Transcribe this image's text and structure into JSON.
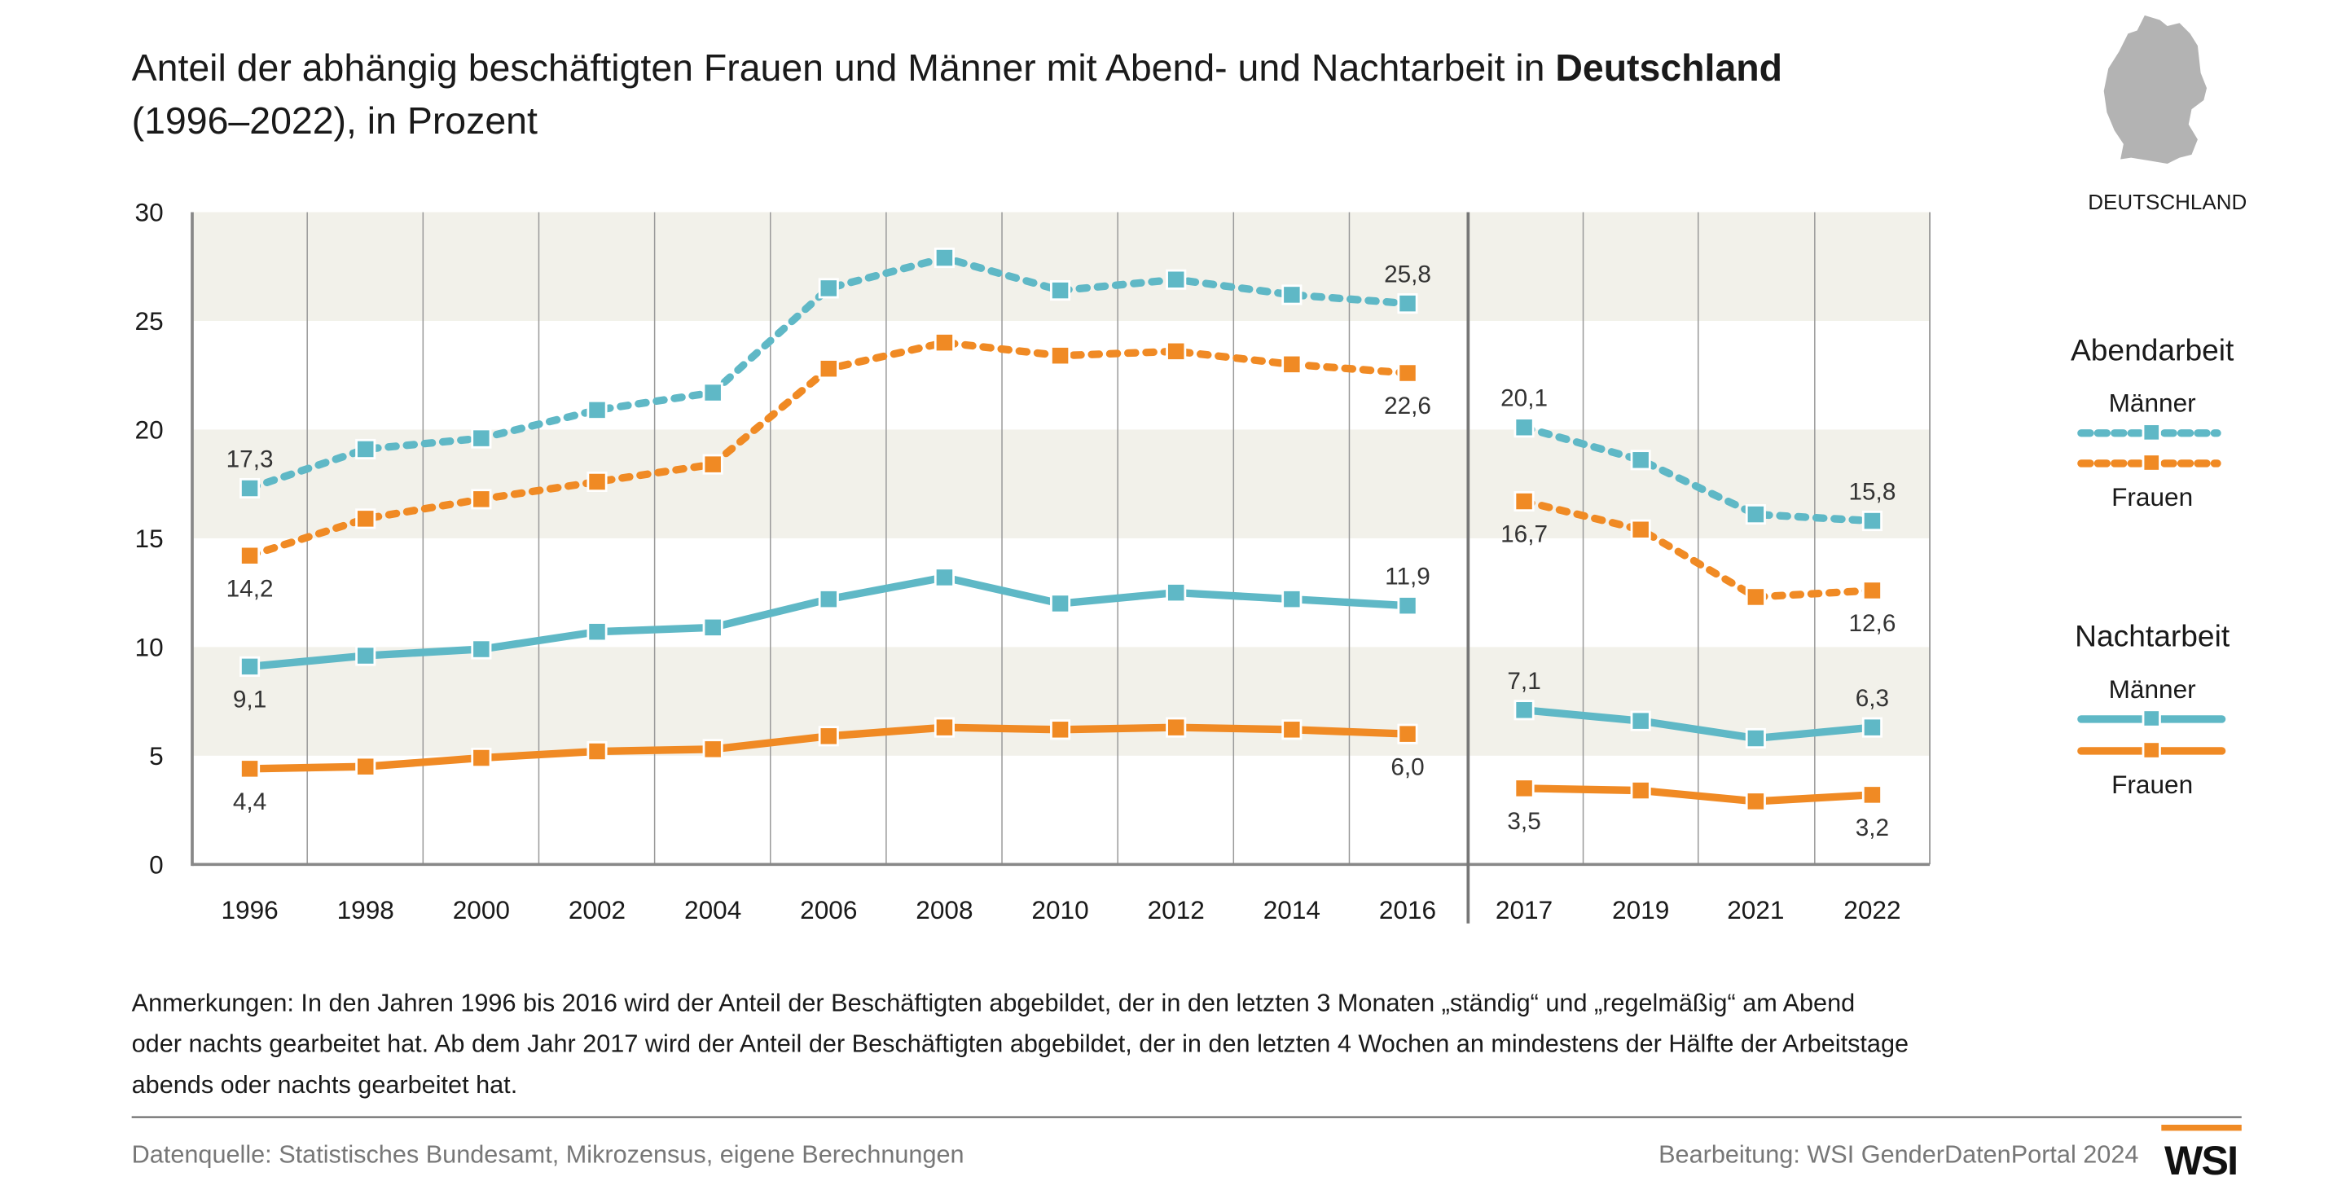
{
  "title": {
    "line1_prefix": "Anteil der abhängig beschäftigten Frauen und Männer mit Abend- und Nachtarbeit in ",
    "line1_bold": "Deutschland",
    "line2": "(1996–2022), in Prozent"
  },
  "map": {
    "label": "DEUTSCHLAND",
    "color": "#b3b3b3"
  },
  "chart_data": {
    "type": "line",
    "title": "Anteil der abhängig beschäftigten Frauen und Männer mit Abend- und Nachtarbeit in Deutschland (1996–2022), in Prozent",
    "ylim": [
      0,
      30
    ],
    "yticks": [
      "0",
      "5",
      "10",
      "15",
      "20",
      "25",
      "30"
    ],
    "grid": "alternating horizontal bands, vertical gridlines",
    "segments": [
      {
        "x": [
          "1996",
          "1998",
          "2000",
          "2002",
          "2004",
          "2006",
          "2008",
          "2010",
          "2012",
          "2014",
          "2016"
        ]
      },
      {
        "x": [
          "2017",
          "2019",
          "2021",
          "2022"
        ]
      }
    ],
    "legend_position": "right",
    "series": [
      {
        "group": "Abendarbeit",
        "name": "Männer",
        "color": "#5fb8c6",
        "style": "dotted",
        "values": [
          [
            17.3,
            19.1,
            19.6,
            20.9,
            21.7,
            26.5,
            27.9,
            26.4,
            26.9,
            26.2,
            25.8
          ],
          [
            20.1,
            18.6,
            16.1,
            15.8
          ]
        ]
      },
      {
        "group": "Abendarbeit",
        "name": "Frauen",
        "color": "#f08a24",
        "style": "dotted",
        "values": [
          [
            14.2,
            15.9,
            16.8,
            17.6,
            18.4,
            22.8,
            24.0,
            23.4,
            23.6,
            23.0,
            22.6
          ],
          [
            16.7,
            15.4,
            12.3,
            12.6
          ]
        ]
      },
      {
        "group": "Nachtarbeit",
        "name": "Männer",
        "color": "#5fb8c6",
        "style": "solid",
        "values": [
          [
            9.1,
            9.6,
            9.9,
            10.7,
            10.9,
            12.2,
            13.2,
            12.0,
            12.5,
            12.2,
            11.9
          ],
          [
            7.1,
            6.6,
            5.8,
            6.3
          ]
        ]
      },
      {
        "group": "Nachtarbeit",
        "name": "Frauen",
        "color": "#f08a24",
        "style": "solid",
        "values": [
          [
            4.4,
            4.5,
            4.9,
            5.2,
            5.3,
            5.9,
            6.3,
            6.2,
            6.3,
            6.2,
            6.0
          ],
          [
            3.5,
            3.4,
            2.9,
            3.2
          ]
        ]
      }
    ],
    "data_labels": "first and last value of each segment"
  },
  "legend": {
    "abend": {
      "title": "Abendarbeit",
      "men": "Männer",
      "women": "Frauen"
    },
    "nacht": {
      "title": "Nachtarbeit",
      "men": "Männer",
      "women": "Frauen"
    }
  },
  "notes": [
    "Anmerkungen: In den Jahren 1996 bis 2016 wird der Anteil der Beschäftigten abgebildet, der in den letzten 3 Monaten „ständig“ und „regelmäßig“ am Abend",
    "oder nachts gearbeitet hat. Ab dem Jahr 2017 wird der Anteil der Beschäftigten abgebildet, der in den letzten 4 Wochen an mindestens der Hälfte der Arbeitstage",
    "abends oder nachts gearbeitet hat."
  ],
  "footer": {
    "source": "Datenquelle: Statistisches Bundesamt, Mikrozensus, eigene Berechnungen",
    "credit": "Bearbeitung: WSI GenderDatenPortal 2024",
    "logo": "WSI"
  },
  "colors": {
    "teal": "#5fb8c6",
    "orange": "#f08a24",
    "band": "#f2f1ea",
    "axis": "#888888"
  }
}
